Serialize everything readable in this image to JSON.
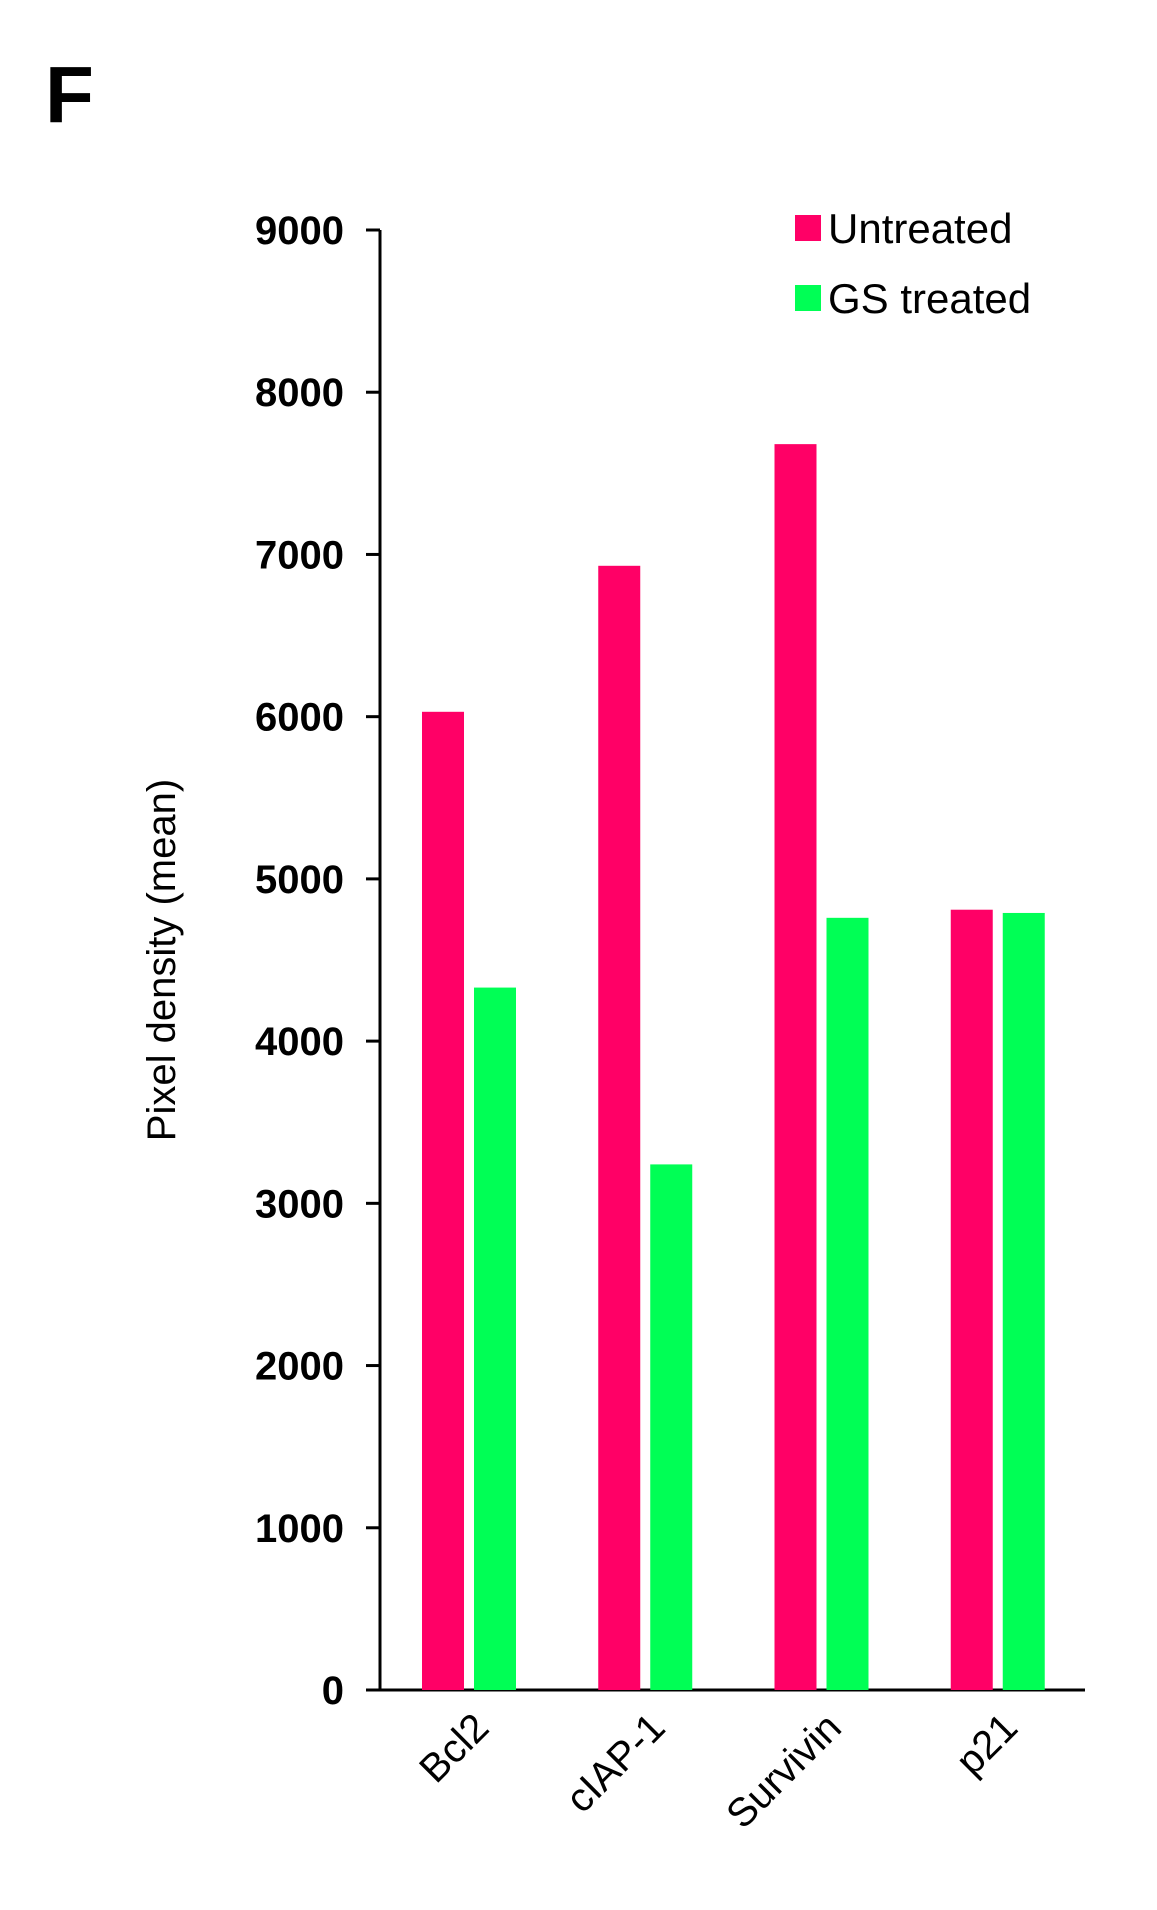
{
  "panel_label": "F",
  "colors": {
    "untreated": "#ff0066",
    "gs_treated": "#00ff55",
    "axis": "#000000"
  },
  "chart_data": {
    "type": "bar",
    "title": "",
    "xlabel": "",
    "ylabel": "Pixel density (mean)",
    "categories": [
      "Bcl2",
      "cIAP-1",
      "Survivin",
      "p21"
    ],
    "series": [
      {
        "name": "Untreated",
        "values": [
          6030,
          6930,
          7680,
          4810
        ]
      },
      {
        "name": "GS treated",
        "values": [
          4330,
          3240,
          4760,
          4790
        ]
      }
    ],
    "ylim": [
      0,
      9000
    ],
    "yticks": [
      0,
      1000,
      2000,
      3000,
      4000,
      5000,
      6000,
      7000,
      8000,
      9000
    ],
    "grid": false,
    "legend_position": "top-right"
  }
}
